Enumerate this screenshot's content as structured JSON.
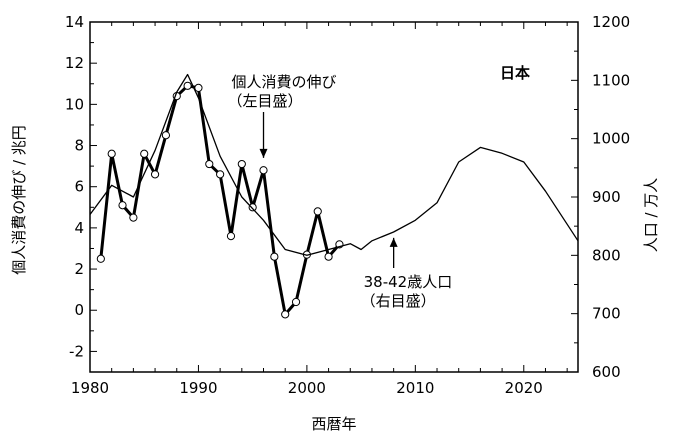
{
  "chart_data": {
    "type": "line",
    "country_label": "日本",
    "xlabel": "西暦年",
    "ylabel_left": "個人消費の伸び / 兆円",
    "ylabel_right": "人口 / 万人",
    "xlim": [
      1980,
      2025
    ],
    "ylim_left": [
      -3,
      14
    ],
    "ylim_right": [
      600,
      1200
    ],
    "x_ticks": [
      1980,
      1990,
      2000,
      2010,
      2020
    ],
    "y_left_ticks": [
      -2,
      0,
      2,
      4,
      6,
      8,
      10,
      12,
      14
    ],
    "y_right_ticks": [
      600,
      700,
      800,
      900,
      1000,
      1100,
      1200
    ],
    "series": [
      {
        "name": "個人消費の伸び",
        "axis": "left",
        "markers": true,
        "x": [
          1981,
          1982,
          1983,
          1984,
          1985,
          1986,
          1987,
          1988,
          1989,
          1990,
          1991,
          1992,
          1993,
          1994,
          1995,
          1996,
          1997,
          1998,
          1999,
          2000,
          2001,
          2002,
          2003
        ],
        "y": [
          2.5,
          7.6,
          5.1,
          4.5,
          7.6,
          6.6,
          8.5,
          10.4,
          10.9,
          10.8,
          7.1,
          6.6,
          3.6,
          7.1,
          5.0,
          6.8,
          2.6,
          -0.2,
          0.4,
          2.7,
          4.8,
          2.6,
          3.2
        ]
      },
      {
        "name": "38-42歳人口",
        "axis": "right",
        "markers": false,
        "x": [
          1980,
          1982,
          1984,
          1986,
          1988,
          1989,
          1990,
          1992,
          1994,
          1996,
          1998,
          2000,
          2002,
          2004,
          2005,
          2006,
          2008,
          2010,
          2012,
          2014,
          2016,
          2018,
          2020,
          2022,
          2025
        ],
        "y": [
          870,
          920,
          900,
          980,
          1080,
          1110,
          1070,
          970,
          900,
          860,
          810,
          800,
          810,
          820,
          810,
          825,
          840,
          860,
          890,
          960,
          985,
          975,
          960,
          910,
          825
        ]
      }
    ],
    "annotations": [
      {
        "text_lines": [
          "個人消費の伸び",
          "（左目盛）"
        ],
        "points_to_x": 1996,
        "points_to_y_left": 7.4
      },
      {
        "text_lines": [
          "38-42歳人口",
          "（右目盛）"
        ],
        "points_to_x": 2008,
        "points_to_y_right": 830
      }
    ]
  }
}
